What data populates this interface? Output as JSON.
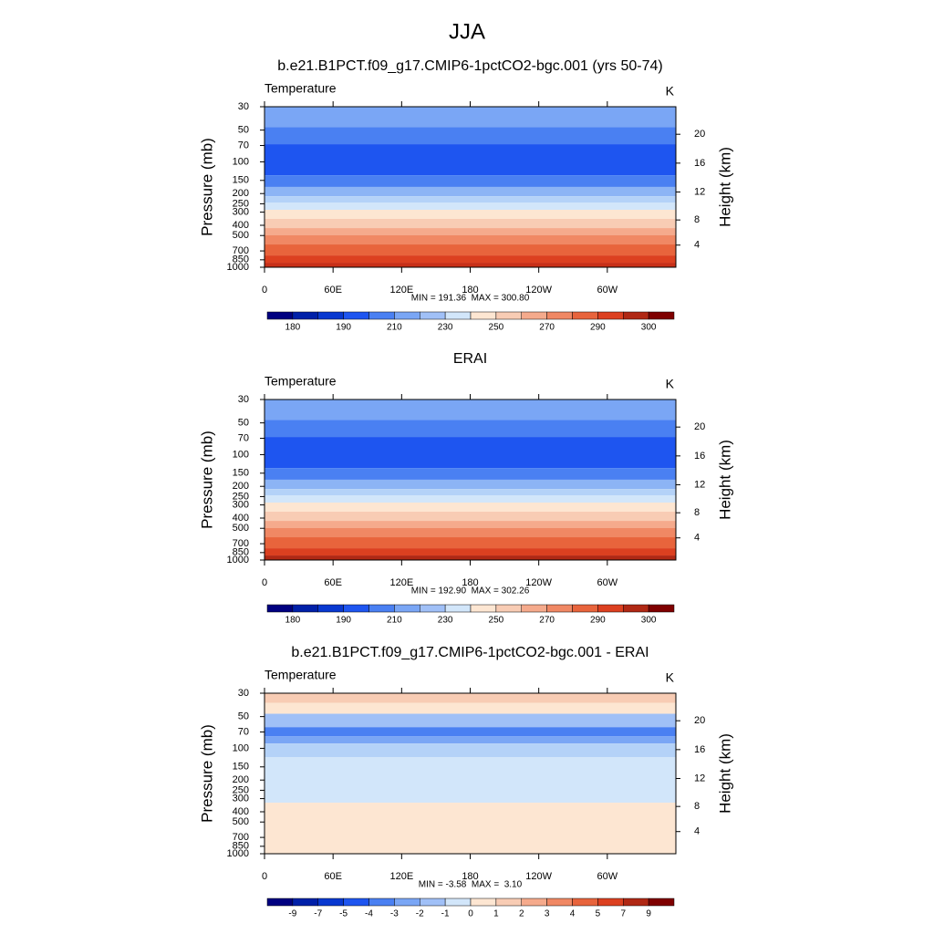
{
  "title": "JJA",
  "chart_data": [
    {
      "type": "contour",
      "title": "b.e21.B1PCT.f09_g17.CMIP6-1pctCO2-bgc.001 (yrs 50-74)",
      "left_label": "Temperature",
      "right_label": "K",
      "ylabel": "Pressure (mb)",
      "y2label": "Height (km)",
      "xlim": [
        0,
        360
      ],
      "xticks": [
        0,
        {
          "value": 60,
          "label": "60E"
        },
        {
          "value": 120,
          "label": "120E"
        },
        180,
        {
          "value": 240,
          "label": "120W"
        },
        {
          "value": 300,
          "label": "60W"
        }
      ],
      "ylim": [
        1000,
        30
      ],
      "ylog": true,
      "yticks": [
        30,
        50,
        70,
        100,
        150,
        200,
        250,
        300,
        400,
        500,
        700,
        850,
        1000
      ],
      "y2ticks": [
        4,
        8,
        12,
        16,
        20
      ],
      "stats": "MIN = 191.36  MAX = 300.80",
      "layers": [
        {
          "from": 30,
          "to": 47,
          "color": "#7aa6f5"
        },
        {
          "from": 47,
          "to": 68,
          "color": "#4a80f2"
        },
        {
          "from": 68,
          "to": 134,
          "color": "#1e55f0"
        },
        {
          "from": 134,
          "to": 173,
          "color": "#4a80f2"
        },
        {
          "from": 173,
          "to": 212,
          "color": "#8cb4f5"
        },
        {
          "from": 212,
          "to": 243,
          "color": "#b4d2f8"
        },
        {
          "from": 243,
          "to": 285,
          "color": "#d2e6fa"
        },
        {
          "from": 285,
          "to": 348,
          "color": "#fde6d2"
        },
        {
          "from": 348,
          "to": 425,
          "color": "#f8ccb4"
        },
        {
          "from": 425,
          "to": 498,
          "color": "#f5aa8c"
        },
        {
          "from": 498,
          "to": 608,
          "color": "#f08864"
        },
        {
          "from": 608,
          "to": 773,
          "color": "#e8643c"
        },
        {
          "from": 773,
          "to": 906,
          "color": "#dc4020"
        },
        {
          "from": 906,
          "to": 1000,
          "color": "#c83018"
        }
      ],
      "colorbar": {
        "colors": [
          "#000080",
          "#0020a8",
          "#0838d0",
          "#1e55f0",
          "#4a80f2",
          "#7aa6f5",
          "#a0c0f7",
          "#d2e6fa",
          "#fde6d2",
          "#f8ccb4",
          "#f5aa8c",
          "#f08864",
          "#e8643c",
          "#dc4020",
          "#b02814",
          "#7f0000"
        ],
        "ticks": [
          180,
          190,
          210,
          230,
          250,
          270,
          290,
          300
        ]
      }
    },
    {
      "type": "contour",
      "title": "ERAI",
      "left_label": "Temperature",
      "right_label": "K",
      "ylabel": "Pressure (mb)",
      "y2label": "Height (km)",
      "xlim": [
        0,
        360
      ],
      "xticks": [
        0,
        {
          "value": 60,
          "label": "60E"
        },
        {
          "value": 120,
          "label": "120E"
        },
        180,
        {
          "value": 240,
          "label": "120W"
        },
        {
          "value": 300,
          "label": "60W"
        }
      ],
      "ylim": [
        1000,
        30
      ],
      "ylog": true,
      "yticks": [
        30,
        50,
        70,
        100,
        150,
        200,
        250,
        300,
        400,
        500,
        700,
        850,
        1000
      ],
      "y2ticks": [
        4,
        8,
        12,
        16,
        20
      ],
      "stats": "MIN = 192.90  MAX = 302.26",
      "layers": [
        {
          "from": 30,
          "to": 47,
          "color": "#7aa6f5"
        },
        {
          "from": 47,
          "to": 68,
          "color": "#4a80f2"
        },
        {
          "from": 68,
          "to": 134,
          "color": "#1e55f0"
        },
        {
          "from": 134,
          "to": 173,
          "color": "#4a80f2"
        },
        {
          "from": 173,
          "to": 212,
          "color": "#8cb4f5"
        },
        {
          "from": 212,
          "to": 243,
          "color": "#b4d2f8"
        },
        {
          "from": 243,
          "to": 285,
          "color": "#d2e6fa"
        },
        {
          "from": 285,
          "to": 348,
          "color": "#fde6d2"
        },
        {
          "from": 348,
          "to": 425,
          "color": "#f8ccb4"
        },
        {
          "from": 425,
          "to": 498,
          "color": "#f5aa8c"
        },
        {
          "from": 498,
          "to": 608,
          "color": "#f08864"
        },
        {
          "from": 608,
          "to": 773,
          "color": "#e8643c"
        },
        {
          "from": 773,
          "to": 906,
          "color": "#dc4020"
        },
        {
          "from": 906,
          "to": 1000,
          "color": "#b02814"
        }
      ],
      "colorbar": {
        "colors": [
          "#000080",
          "#0020a8",
          "#0838d0",
          "#1e55f0",
          "#4a80f2",
          "#7aa6f5",
          "#a0c0f7",
          "#d2e6fa",
          "#fde6d2",
          "#f8ccb4",
          "#f5aa8c",
          "#f08864",
          "#e8643c",
          "#dc4020",
          "#b02814",
          "#7f0000"
        ],
        "ticks": [
          180,
          190,
          210,
          230,
          250,
          270,
          290,
          300
        ]
      }
    },
    {
      "type": "contour",
      "title": "b.e21.B1PCT.f09_g17.CMIP6-1pctCO2-bgc.001 - ERAI",
      "left_label": "Temperature",
      "right_label": "K",
      "ylabel": "Pressure (mb)",
      "y2label": "Height (km)",
      "xlim": [
        0,
        360
      ],
      "xticks": [
        0,
        {
          "value": 60,
          "label": "60E"
        },
        {
          "value": 120,
          "label": "120E"
        },
        180,
        {
          "value": 240,
          "label": "120W"
        },
        {
          "value": 300,
          "label": "60W"
        }
      ],
      "ylim": [
        1000,
        30
      ],
      "ylog": true,
      "yticks": [
        30,
        50,
        70,
        100,
        150,
        200,
        250,
        300,
        400,
        500,
        700,
        850,
        1000
      ],
      "y2ticks": [
        4,
        8,
        12,
        16,
        20
      ],
      "stats": "MIN = -3.58  MAX =  3.10",
      "layers": [
        {
          "from": 30,
          "to": 37,
          "color": "#f8ccb4"
        },
        {
          "from": 37,
          "to": 47,
          "color": "#fde6d2"
        },
        {
          "from": 47,
          "to": 63,
          "color": "#a0c0f7"
        },
        {
          "from": 63,
          "to": 77,
          "color": "#4a80f2"
        },
        {
          "from": 77,
          "to": 90,
          "color": "#7aa6f5"
        },
        {
          "from": 90,
          "to": 121,
          "color": "#b4d2f8"
        },
        {
          "from": 121,
          "to": 328,
          "color": "#d2e6fa"
        },
        {
          "from": 328,
          "to": 1000,
          "color": "#fde6d2"
        }
      ],
      "colorbar": {
        "colors": [
          "#000080",
          "#0020a8",
          "#0838d0",
          "#1e55f0",
          "#4a80f2",
          "#7aa6f5",
          "#a0c0f7",
          "#d2e6fa",
          "#fde6d2",
          "#f8ccb4",
          "#f5aa8c",
          "#f08864",
          "#e8643c",
          "#dc4020",
          "#b02814",
          "#7f0000"
        ],
        "ticks": [
          -9,
          -7,
          -5,
          -4,
          -3,
          -2,
          -1,
          0,
          1,
          2,
          3,
          4,
          5,
          7,
          9
        ]
      }
    }
  ]
}
